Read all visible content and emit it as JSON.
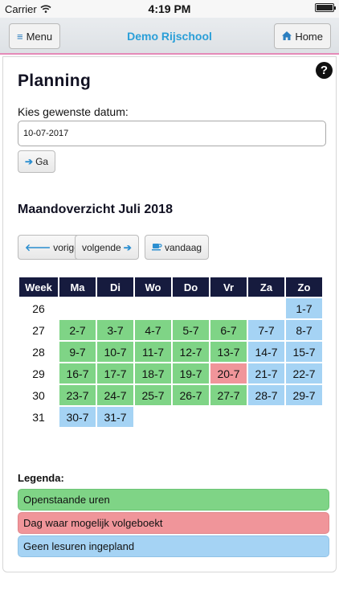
{
  "statusbar": {
    "carrier": "Carrier",
    "time": "4:19 PM"
  },
  "header": {
    "menu_label": "Menu",
    "home_label": "Home",
    "title": "Demo Rijschool"
  },
  "page": {
    "title": "Planning",
    "date_label": "Kies gewenste datum:",
    "date_value": "10-07-2017",
    "go_label": "Ga",
    "month_title": "Maandoverzicht Juli 2018",
    "prev_label": "vorige",
    "next_label": "volgende",
    "today_label": "vandaag"
  },
  "calendar": {
    "headers": [
      "Week",
      "Ma",
      "Di",
      "Wo",
      "Do",
      "Vr",
      "Za",
      "Zo"
    ],
    "rows": [
      {
        "week": "26",
        "days": [
          "",
          "",
          "",
          "",
          "",
          "",
          "1-7"
        ],
        "status": [
          "",
          "",
          "",
          "",
          "",
          "",
          "b"
        ]
      },
      {
        "week": "27",
        "days": [
          "2-7",
          "3-7",
          "4-7",
          "5-7",
          "6-7",
          "7-7",
          "8-7"
        ],
        "status": [
          "g",
          "g",
          "g",
          "g",
          "g",
          "b",
          "b"
        ]
      },
      {
        "week": "28",
        "days": [
          "9-7",
          "10-7",
          "11-7",
          "12-7",
          "13-7",
          "14-7",
          "15-7"
        ],
        "status": [
          "g",
          "g",
          "g",
          "g",
          "g",
          "b",
          "b"
        ]
      },
      {
        "week": "29",
        "days": [
          "16-7",
          "17-7",
          "18-7",
          "19-7",
          "20-7",
          "21-7",
          "22-7"
        ],
        "status": [
          "g",
          "g",
          "g",
          "g",
          "r",
          "b",
          "b"
        ]
      },
      {
        "week": "30",
        "days": [
          "23-7",
          "24-7",
          "25-7",
          "26-7",
          "27-7",
          "28-7",
          "29-7"
        ],
        "status": [
          "g",
          "g",
          "g",
          "g",
          "g",
          "b",
          "b"
        ]
      },
      {
        "week": "31",
        "days": [
          "30-7",
          "31-7",
          "",
          "",
          "",
          "",
          ""
        ],
        "status": [
          "b",
          "b",
          "",
          "",
          "",
          "",
          ""
        ]
      }
    ]
  },
  "legend": {
    "title": "Legenda:",
    "items": [
      "Openstaande uren",
      "Dag waar mogelijk volgeboekt",
      "Geen lesuren ingepland"
    ]
  },
  "colors": {
    "green": "#7fd486",
    "red": "#f0959a",
    "blue": "#a5d3f4",
    "header_dark": "#161b3e",
    "accent": "#2a9fd8"
  }
}
